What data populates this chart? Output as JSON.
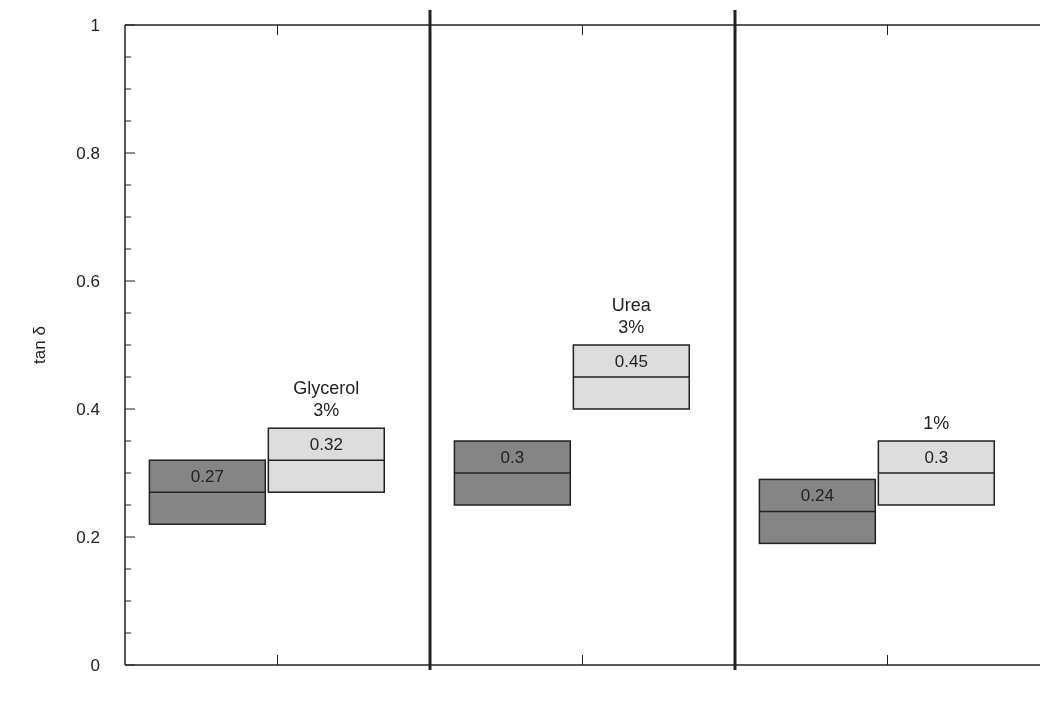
{
  "chart_data": {
    "type": "box",
    "ylabel": "tan δ",
    "categories": [
      null,
      null,
      null
    ],
    "series": [
      {
        "color": "#858585",
        "boxes": [
          {
            "low": 0.22,
            "q1": 0.22,
            "median": 0.27,
            "q3": 0.32,
            "high": 0.32
          },
          {
            "low": 0.25,
            "q1": 0.25,
            "median": 0.3,
            "q3": 0.35,
            "high": 0.35
          },
          {
            "low": 0.19,
            "q1": 0.19,
            "median": 0.24,
            "q3": 0.29,
            "high": 0.29
          }
        ],
        "value_labels": [
          "0.27",
          "0.3",
          "0.24"
        ]
      },
      {
        "color": "#dcdcdc",
        "boxes": [
          {
            "low": 0.27,
            "q1": 0.27,
            "median": 0.32,
            "q3": 0.37,
            "high": 0.37
          },
          {
            "low": 0.4,
            "q1": 0.4,
            "median": 0.45,
            "q3": 0.5,
            "high": 0.5
          },
          {
            "low": 0.25,
            "q1": 0.25,
            "median": 0.3,
            "q3": 0.35,
            "high": 0.35
          }
        ],
        "value_labels": [
          "0.32",
          "0.45",
          "0.3"
        ]
      }
    ],
    "annotations": [
      "Glycerol\n3%",
      "Urea\n3%",
      "1%"
    ],
    "ylim": [
      0,
      1
    ],
    "yticks": [
      0,
      {
        "value": 0.05,
        "label": null
      },
      {
        "value": 0.1,
        "label": null
      },
      {
        "value": 0.15,
        "label": null
      },
      0.2,
      {
        "value": 0.25,
        "label": null
      },
      {
        "value": 0.3,
        "label": null
      },
      {
        "value": 0.35,
        "label": null
      },
      0.4,
      {
        "value": 0.45,
        "label": null
      },
      {
        "value": 0.5,
        "label": null
      },
      {
        "value": 0.55,
        "label": null
      },
      0.6,
      {
        "value": 0.65,
        "label": null
      },
      {
        "value": 0.7,
        "label": null
      },
      {
        "value": 0.75,
        "label": null
      },
      0.8,
      {
        "value": 0.85,
        "label": null
      },
      {
        "value": 0.9,
        "label": null
      },
      {
        "value": 0.95,
        "label": null
      },
      1
    ],
    "grid": false
  }
}
